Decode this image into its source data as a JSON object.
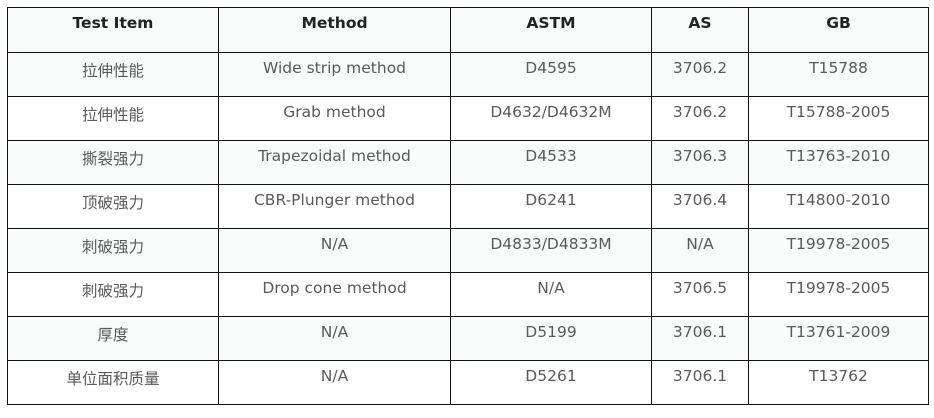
{
  "table": {
    "headers": [
      "Test Item",
      "Method",
      "ASTM",
      "AS",
      "GB"
    ],
    "rows": [
      [
        "拉伸性能",
        "Wide strip method",
        "D4595",
        "3706.2",
        "T15788"
      ],
      [
        "拉伸性能",
        "Grab method",
        "D4632/D4632M",
        "3706.2",
        "T15788-2005"
      ],
      [
        "撕裂强力",
        "Trapezoidal method",
        "D4533",
        "3706.3",
        "T13763-2010"
      ],
      [
        "顶破强力",
        "CBR-Plunger method",
        "D6241",
        "3706.4",
        "T14800-2010"
      ],
      [
        "刺破强力",
        "N/A",
        "D4833/D4833M",
        "N/A",
        "T19978-2005"
      ],
      [
        "刺破强力",
        "Drop cone method",
        "N/A",
        "3706.5",
        "T19978-2005"
      ],
      [
        "厚度",
        "N/A",
        "D5199",
        "3706.1",
        "T13761-2009"
      ],
      [
        "单位面积质量",
        "N/A",
        "D5261",
        "3706.1",
        "T13762"
      ]
    ]
  }
}
